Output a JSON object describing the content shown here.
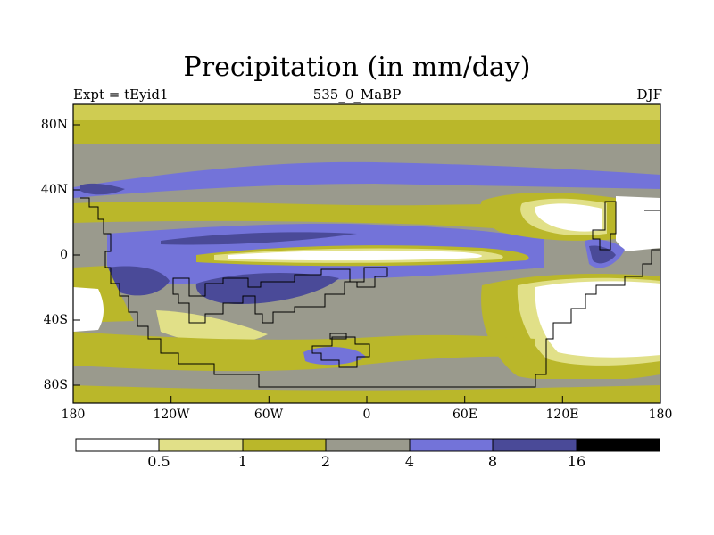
{
  "figure": {
    "title": "Precipitation (in mm/day)",
    "subtitle_left": "Expt = tEyid1",
    "subtitle_center": "535_0_MaBP",
    "subtitle_right": "DJF"
  },
  "axes": {
    "y_ticks": [
      "80N",
      "40N",
      "0",
      "40S",
      "80S"
    ],
    "x_ticks": [
      "180",
      "120W",
      "60W",
      "0",
      "60E",
      "120E",
      "180"
    ]
  },
  "colorbar": {
    "boundaries": [
      "0.5",
      "1",
      "2",
      "4",
      "8",
      "16"
    ],
    "colors": [
      "#ffffff",
      "#e1e088",
      "#bab72a",
      "#9a9a8d",
      "#7373d9",
      "#4a4a98",
      "#000000"
    ]
  }
}
